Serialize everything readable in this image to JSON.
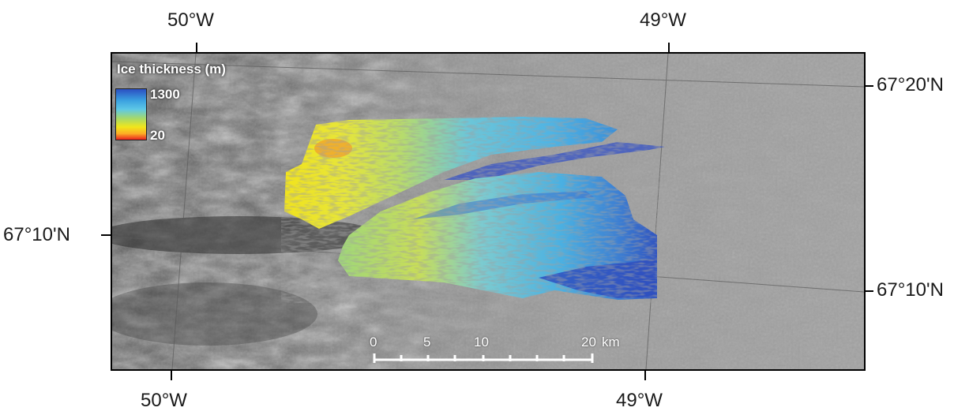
{
  "coordinates": {
    "top_left_lon": "50°W",
    "top_right_lon": "49°W",
    "bottom_left_lon": "50°W",
    "bottom_right_lon": "49°W",
    "right_top_lat": "67°20'N",
    "right_bottom_lat": "67°10'N",
    "left_lat": "67°10'N"
  },
  "legend": {
    "title": "Ice thickness (m)",
    "max_label": "1300",
    "min_label": "20",
    "colors": [
      "#2b4fc2",
      "#3aa0e0",
      "#5ec8e6",
      "#a6d96a",
      "#f1e61a",
      "#fdae25",
      "#e8221f"
    ]
  },
  "scale_bar": {
    "labels": [
      "0",
      "5",
      "10",
      "20"
    ],
    "unit": "km"
  }
}
